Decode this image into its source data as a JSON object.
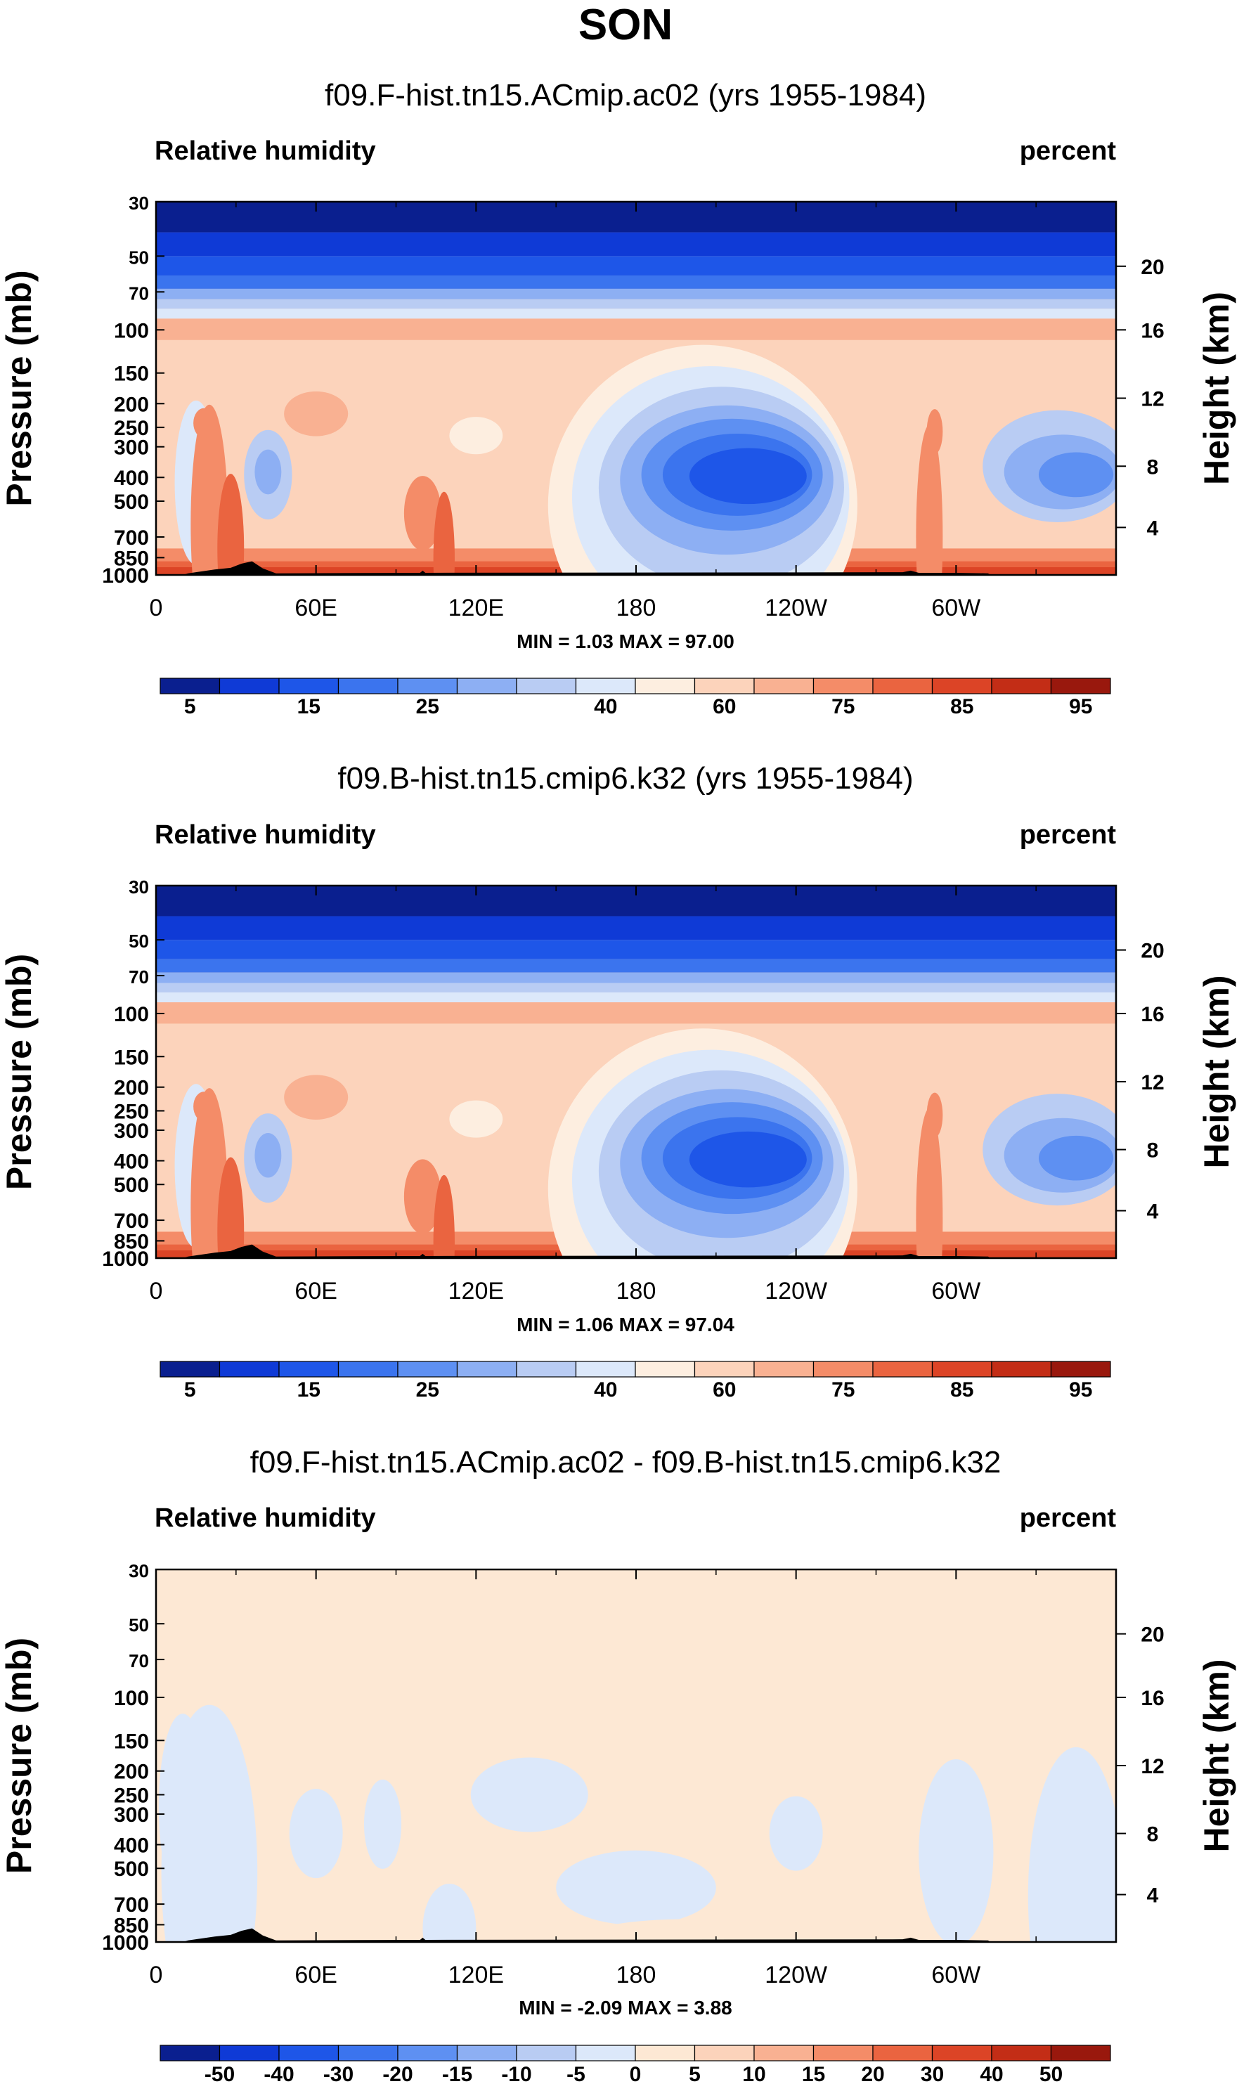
{
  "figure_title": "SON",
  "colors": {
    "rh_scale": [
      "#0a1f8f",
      "#0f3ad6",
      "#1e56e8",
      "#3b74ee",
      "#5e90f2",
      "#8daff3",
      "#b9ccf3",
      "#dce8fa",
      "#fdeee0",
      "#fcd3bb",
      "#f9b192",
      "#f48c68",
      "#ea6440",
      "#dc4426",
      "#c32d16",
      "#99180d"
    ],
    "diff_scale": [
      "#0a1f8f",
      "#0f3ad6",
      "#1e56e8",
      "#3b74ee",
      "#5e90f2",
      "#8daff3",
      "#b9ccf3",
      "#dce8fa",
      "#fde8d4",
      "#fcd3bb",
      "#f9b192",
      "#f48c68",
      "#ea6440",
      "#dc4426",
      "#c32d16",
      "#99180d"
    ],
    "land": "#000000",
    "frame": "#000000"
  },
  "chart_data": [
    {
      "type": "heatmap",
      "title": "f09.F-hist.tn15.ACmip.ac02 (yrs 1955-1984)",
      "left_label": "Relative humidity",
      "right_label": "percent",
      "ylabel": "Pressure (mb)",
      "ylabel_right": "Height (km)",
      "x_ticks": [
        "0",
        "60E",
        "120E",
        "180",
        "120W",
        "60W"
      ],
      "y_ticks": [
        "30",
        "50",
        "70",
        "100",
        "150",
        "200",
        "250",
        "300",
        "400",
        "500",
        "700",
        "850",
        "1000"
      ],
      "y_ticks_right": [
        "20",
        "16",
        "12",
        "8",
        "4"
      ],
      "stats": "MIN =   1.03   MAX =  97.00",
      "min": 1.03,
      "max": 97.0,
      "colorbar_labels": [
        "5",
        "15",
        "25",
        "40",
        "60",
        "75",
        "85",
        "95"
      ],
      "colorbar_levels": [
        5,
        10,
        15,
        20,
        25,
        30,
        40,
        50,
        60,
        70,
        75,
        80,
        85,
        90,
        95
      ]
    },
    {
      "type": "heatmap",
      "title": "f09.B-hist.tn15.cmip6.k32 (yrs 1955-1984)",
      "left_label": "Relative humidity",
      "right_label": "percent",
      "ylabel": "Pressure (mb)",
      "ylabel_right": "Height (km)",
      "x_ticks": [
        "0",
        "60E",
        "120E",
        "180",
        "120W",
        "60W"
      ],
      "y_ticks": [
        "30",
        "50",
        "70",
        "100",
        "150",
        "200",
        "250",
        "300",
        "400",
        "500",
        "700",
        "850",
        "1000"
      ],
      "y_ticks_right": [
        "20",
        "16",
        "12",
        "8",
        "4"
      ],
      "stats": "MIN =   1.06   MAX =  97.04",
      "min": 1.06,
      "max": 97.04,
      "colorbar_labels": [
        "5",
        "15",
        "25",
        "40",
        "60",
        "75",
        "85",
        "95"
      ],
      "colorbar_levels": [
        5,
        10,
        15,
        20,
        25,
        30,
        40,
        50,
        60,
        70,
        75,
        80,
        85,
        90,
        95
      ]
    },
    {
      "type": "heatmap",
      "title": "f09.F-hist.tn15.ACmip.ac02 - f09.B-hist.tn15.cmip6.k32",
      "left_label": "Relative humidity",
      "right_label": "percent",
      "ylabel": "Pressure (mb)",
      "ylabel_right": "Height (km)",
      "x_ticks": [
        "0",
        "60E",
        "120E",
        "180",
        "120W",
        "60W"
      ],
      "y_ticks": [
        "30",
        "50",
        "70",
        "100",
        "150",
        "200",
        "250",
        "300",
        "400",
        "500",
        "700",
        "850",
        "1000"
      ],
      "y_ticks_right": [
        "20",
        "16",
        "12",
        "8",
        "4"
      ],
      "stats": "MIN =  -2.09   MAX =   3.88",
      "min": -2.09,
      "max": 3.88,
      "colorbar_labels": [
        "-50",
        "-40",
        "-30",
        "-20",
        "-15",
        "-10",
        "-5",
        "0",
        "5",
        "10",
        "15",
        "20",
        "30",
        "40",
        "50"
      ],
      "colorbar_levels": [
        -50,
        -40,
        -30,
        -20,
        -15,
        -10,
        -5,
        0,
        5,
        10,
        15,
        20,
        30,
        40,
        50
      ]
    }
  ]
}
